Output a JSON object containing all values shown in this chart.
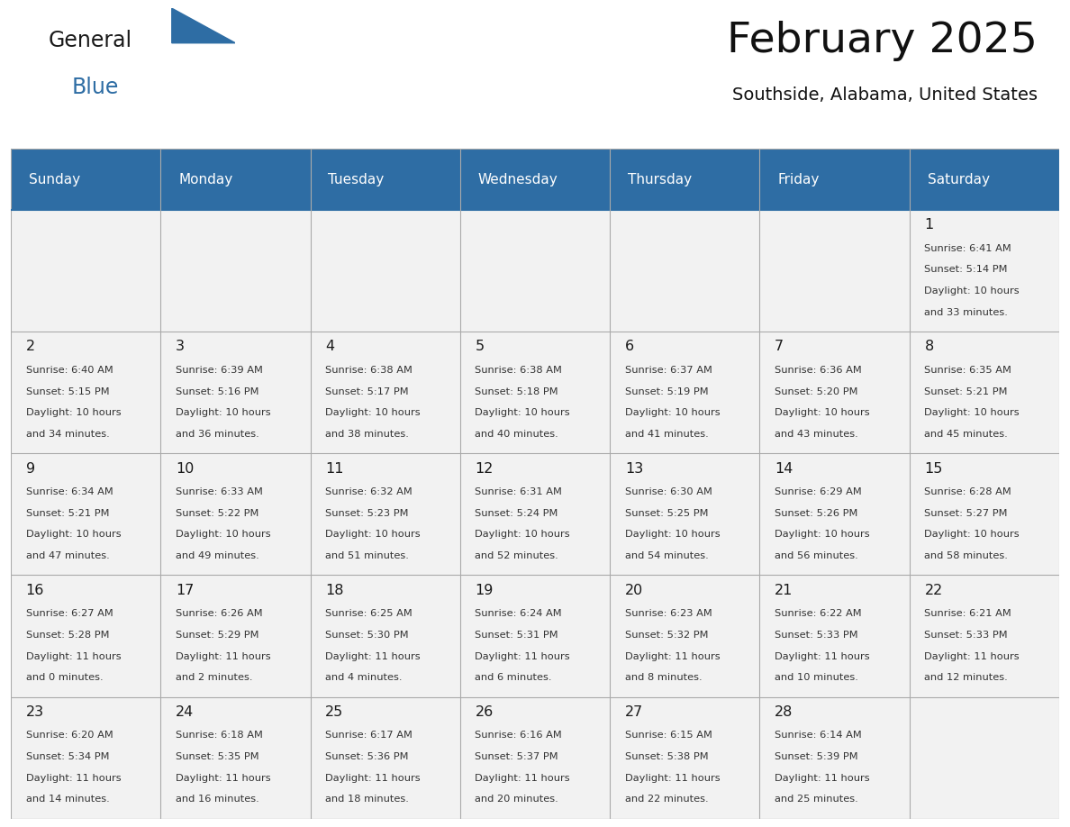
{
  "title": "February 2025",
  "subtitle": "Southside, Alabama, United States",
  "header_bg": "#2E6DA4",
  "header_text": "#FFFFFF",
  "border_color": "#2E6DA4",
  "grid_line_color": "#AAAAAA",
  "cell_bg": "#F8F8F8",
  "day_text_color": "#333333",
  "day_num_color": "#1a1a1a",
  "day_names": [
    "Sunday",
    "Monday",
    "Tuesday",
    "Wednesday",
    "Thursday",
    "Friday",
    "Saturday"
  ],
  "days": [
    {
      "day": 1,
      "col": 6,
      "row": 0,
      "sunrise": "6:41 AM",
      "sunset": "5:14 PM",
      "daylight_h": "10 hours",
      "daylight_m": "and 33 minutes."
    },
    {
      "day": 2,
      "col": 0,
      "row": 1,
      "sunrise": "6:40 AM",
      "sunset": "5:15 PM",
      "daylight_h": "10 hours",
      "daylight_m": "and 34 minutes."
    },
    {
      "day": 3,
      "col": 1,
      "row": 1,
      "sunrise": "6:39 AM",
      "sunset": "5:16 PM",
      "daylight_h": "10 hours",
      "daylight_m": "and 36 minutes."
    },
    {
      "day": 4,
      "col": 2,
      "row": 1,
      "sunrise": "6:38 AM",
      "sunset": "5:17 PM",
      "daylight_h": "10 hours",
      "daylight_m": "and 38 minutes."
    },
    {
      "day": 5,
      "col": 3,
      "row": 1,
      "sunrise": "6:38 AM",
      "sunset": "5:18 PM",
      "daylight_h": "10 hours",
      "daylight_m": "and 40 minutes."
    },
    {
      "day": 6,
      "col": 4,
      "row": 1,
      "sunrise": "6:37 AM",
      "sunset": "5:19 PM",
      "daylight_h": "10 hours",
      "daylight_m": "and 41 minutes."
    },
    {
      "day": 7,
      "col": 5,
      "row": 1,
      "sunrise": "6:36 AM",
      "sunset": "5:20 PM",
      "daylight_h": "10 hours",
      "daylight_m": "and 43 minutes."
    },
    {
      "day": 8,
      "col": 6,
      "row": 1,
      "sunrise": "6:35 AM",
      "sunset": "5:21 PM",
      "daylight_h": "10 hours",
      "daylight_m": "and 45 minutes."
    },
    {
      "day": 9,
      "col": 0,
      "row": 2,
      "sunrise": "6:34 AM",
      "sunset": "5:21 PM",
      "daylight_h": "10 hours",
      "daylight_m": "and 47 minutes."
    },
    {
      "day": 10,
      "col": 1,
      "row": 2,
      "sunrise": "6:33 AM",
      "sunset": "5:22 PM",
      "daylight_h": "10 hours",
      "daylight_m": "and 49 minutes."
    },
    {
      "day": 11,
      "col": 2,
      "row": 2,
      "sunrise": "6:32 AM",
      "sunset": "5:23 PM",
      "daylight_h": "10 hours",
      "daylight_m": "and 51 minutes."
    },
    {
      "day": 12,
      "col": 3,
      "row": 2,
      "sunrise": "6:31 AM",
      "sunset": "5:24 PM",
      "daylight_h": "10 hours",
      "daylight_m": "and 52 minutes."
    },
    {
      "day": 13,
      "col": 4,
      "row": 2,
      "sunrise": "6:30 AM",
      "sunset": "5:25 PM",
      "daylight_h": "10 hours",
      "daylight_m": "and 54 minutes."
    },
    {
      "day": 14,
      "col": 5,
      "row": 2,
      "sunrise": "6:29 AM",
      "sunset": "5:26 PM",
      "daylight_h": "10 hours",
      "daylight_m": "and 56 minutes."
    },
    {
      "day": 15,
      "col": 6,
      "row": 2,
      "sunrise": "6:28 AM",
      "sunset": "5:27 PM",
      "daylight_h": "10 hours",
      "daylight_m": "and 58 minutes."
    },
    {
      "day": 16,
      "col": 0,
      "row": 3,
      "sunrise": "6:27 AM",
      "sunset": "5:28 PM",
      "daylight_h": "11 hours",
      "daylight_m": "and 0 minutes."
    },
    {
      "day": 17,
      "col": 1,
      "row": 3,
      "sunrise": "6:26 AM",
      "sunset": "5:29 PM",
      "daylight_h": "11 hours",
      "daylight_m": "and 2 minutes."
    },
    {
      "day": 18,
      "col": 2,
      "row": 3,
      "sunrise": "6:25 AM",
      "sunset": "5:30 PM",
      "daylight_h": "11 hours",
      "daylight_m": "and 4 minutes."
    },
    {
      "day": 19,
      "col": 3,
      "row": 3,
      "sunrise": "6:24 AM",
      "sunset": "5:31 PM",
      "daylight_h": "11 hours",
      "daylight_m": "and 6 minutes."
    },
    {
      "day": 20,
      "col": 4,
      "row": 3,
      "sunrise": "6:23 AM",
      "sunset": "5:32 PM",
      "daylight_h": "11 hours",
      "daylight_m": "and 8 minutes."
    },
    {
      "day": 21,
      "col": 5,
      "row": 3,
      "sunrise": "6:22 AM",
      "sunset": "5:33 PM",
      "daylight_h": "11 hours",
      "daylight_m": "and 10 minutes."
    },
    {
      "day": 22,
      "col": 6,
      "row": 3,
      "sunrise": "6:21 AM",
      "sunset": "5:33 PM",
      "daylight_h": "11 hours",
      "daylight_m": "and 12 minutes."
    },
    {
      "day": 23,
      "col": 0,
      "row": 4,
      "sunrise": "6:20 AM",
      "sunset": "5:34 PM",
      "daylight_h": "11 hours",
      "daylight_m": "and 14 minutes."
    },
    {
      "day": 24,
      "col": 1,
      "row": 4,
      "sunrise": "6:18 AM",
      "sunset": "5:35 PM",
      "daylight_h": "11 hours",
      "daylight_m": "and 16 minutes."
    },
    {
      "day": 25,
      "col": 2,
      "row": 4,
      "sunrise": "6:17 AM",
      "sunset": "5:36 PM",
      "daylight_h": "11 hours",
      "daylight_m": "and 18 minutes."
    },
    {
      "day": 26,
      "col": 3,
      "row": 4,
      "sunrise": "6:16 AM",
      "sunset": "5:37 PM",
      "daylight_h": "11 hours",
      "daylight_m": "and 20 minutes."
    },
    {
      "day": 27,
      "col": 4,
      "row": 4,
      "sunrise": "6:15 AM",
      "sunset": "5:38 PM",
      "daylight_h": "11 hours",
      "daylight_m": "and 22 minutes."
    },
    {
      "day": 28,
      "col": 5,
      "row": 4,
      "sunrise": "6:14 AM",
      "sunset": "5:39 PM",
      "daylight_h": "11 hours",
      "daylight_m": "and 25 minutes."
    }
  ]
}
